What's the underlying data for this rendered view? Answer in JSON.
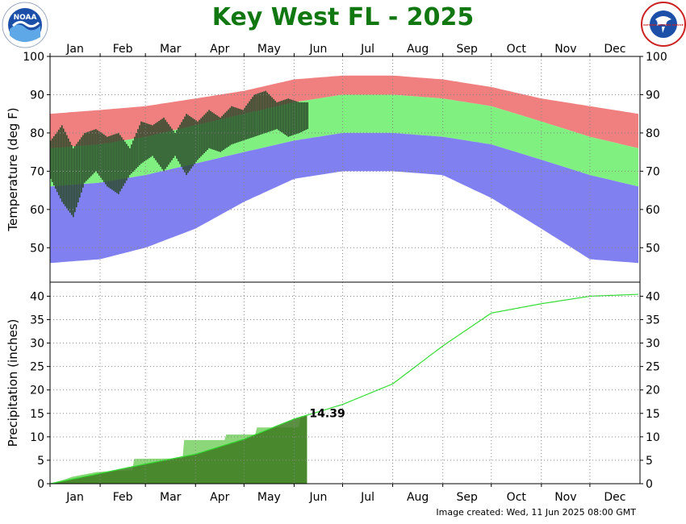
{
  "title": "Key West FL - 2025",
  "footer": "Image created: Wed, 11 Jun 2025 08:00 GMT",
  "colors": {
    "title": "#117711",
    "record_band": "#f08080",
    "normal_band": "#80f080",
    "record_low_band": "#8080f0",
    "observed_temp": "#2a4a2a",
    "normal_precip_line": "#33dd33",
    "observed_precip_fill": "#3d7a1e",
    "normal_precip_fill": "#7fd36b",
    "grid": "#888888"
  },
  "logos": {
    "left": {
      "icon": "noaa-logo",
      "text": "NOAA"
    },
    "right": {
      "icon": "nws-logo",
      "text": "NATIONAL WEATHER SERVICE"
    }
  },
  "chart_data": [
    {
      "type": "area",
      "panel": "temperature",
      "ylabel": "Temperature (deg F)",
      "ylim": [
        41,
        100
      ],
      "yticks": [
        50,
        60,
        70,
        80,
        90,
        100
      ],
      "months": [
        "Jan",
        "Feb",
        "Mar",
        "Apr",
        "May",
        "Jun",
        "Jul",
        "Aug",
        "Sep",
        "Oct",
        "Nov",
        "Dec"
      ],
      "grid": true,
      "x_day_of_year": [
        1,
        32,
        60,
        91,
        121,
        152,
        182,
        213,
        244,
        274,
        305,
        335,
        365
      ],
      "record_high": [
        85,
        86,
        87,
        89,
        91,
        94,
        95,
        95,
        94,
        92,
        89,
        87,
        85
      ],
      "normal_high": [
        76,
        77,
        79,
        82,
        85,
        88,
        90,
        90,
        89,
        87,
        83,
        79,
        76
      ],
      "normal_low": [
        66,
        67,
        69,
        72,
        75,
        78,
        80,
        80,
        79,
        77,
        73,
        69,
        66
      ],
      "record_low": [
        46,
        47,
        50,
        55,
        62,
        68,
        70,
        70,
        69,
        63,
        55,
        47,
        46
      ],
      "observed_days": [
        1,
        8,
        15,
        22,
        29,
        36,
        43,
        50,
        57,
        64,
        71,
        78,
        85,
        92,
        99,
        106,
        113,
        120,
        127,
        134,
        141,
        148,
        155,
        160
      ],
      "observed_high": [
        78,
        82,
        76,
        80,
        81,
        79,
        80,
        76,
        83,
        82,
        84,
        80,
        85,
        83,
        86,
        84,
        87,
        86,
        90,
        91,
        88,
        89,
        88,
        88
      ],
      "observed_low": [
        68,
        62,
        58,
        67,
        70,
        66,
        64,
        69,
        72,
        74,
        70,
        74,
        69,
        73,
        76,
        75,
        77,
        78,
        79,
        80,
        81,
        79,
        80,
        81
      ]
    },
    {
      "type": "line",
      "panel": "precipitation",
      "ylabel": "Precipitation (inches)",
      "ylim": [
        0,
        43
      ],
      "yticks": [
        0,
        5,
        10,
        15,
        20,
        25,
        30,
        35,
        40
      ],
      "months": [
        "Jan",
        "Feb",
        "Mar",
        "Apr",
        "May",
        "Jun",
        "Jul",
        "Aug",
        "Sep",
        "Oct",
        "Nov",
        "Dec"
      ],
      "grid": true,
      "normal_cumulative": {
        "name": "normal",
        "x_day_of_year": [
          1,
          32,
          60,
          91,
          121,
          152,
          182,
          213,
          244,
          274,
          305,
          335,
          365
        ],
        "values": [
          0,
          2.2,
          4.2,
          6.3,
          9.5,
          13.8,
          16.9,
          21.3,
          29.4,
          36.4,
          38.4,
          40.0,
          40.4
        ]
      },
      "observed_cumulative": {
        "x_day_of_year": [
          1,
          10,
          15,
          30,
          52,
          53,
          83,
          84,
          109,
          110,
          128,
          129,
          155,
          156,
          160
        ],
        "values": [
          0,
          0.9,
          1.5,
          2.5,
          2.9,
          5.3,
          5.4,
          9.3,
          9.3,
          10.5,
          10.5,
          12.0,
          12.0,
          14.39,
          14.39
        ]
      },
      "callout": "14.39",
      "xticks": [
        "Jan",
        "Feb",
        "Mar",
        "Apr",
        "May",
        "Jun",
        "Jul",
        "Aug",
        "Sep",
        "Oct",
        "Nov",
        "Dec"
      ]
    }
  ]
}
